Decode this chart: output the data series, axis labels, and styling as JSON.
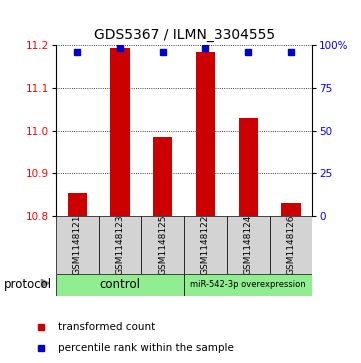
{
  "title": "GDS5367 / ILMN_3304555",
  "samples": [
    "GSM1148121",
    "GSM1148123",
    "GSM1148125",
    "GSM1148122",
    "GSM1148124",
    "GSM1148126"
  ],
  "red_values": [
    10.855,
    11.195,
    10.985,
    11.185,
    11.03,
    10.83
  ],
  "blue_values": [
    11.185,
    11.195,
    11.185,
    11.195,
    11.185,
    11.185
  ],
  "ylim_left": [
    10.8,
    11.2
  ],
  "yticks_left": [
    10.8,
    10.9,
    11.0,
    11.1,
    11.2
  ],
  "yticks_right": [
    0,
    25,
    50,
    75,
    100
  ],
  "ylim_right": [
    0,
    100
  ],
  "group_box_color": "#d3d3d3",
  "bar_color": "#cc0000",
  "dot_color": "#0000cc",
  "bar_width": 0.45,
  "title_fontsize": 10,
  "tick_fontsize": 7.5,
  "sample_fontsize": 6.5,
  "legend_fontsize": 7.5,
  "protocol_fontsize": 8.5,
  "control_label": "control",
  "mir_label": "miR-542-3p overexpression",
  "protocol_label": "protocol",
  "green_color": "#90EE90",
  "legend_red_label": "transformed count",
  "legend_blue_label": "percentile rank within the sample"
}
